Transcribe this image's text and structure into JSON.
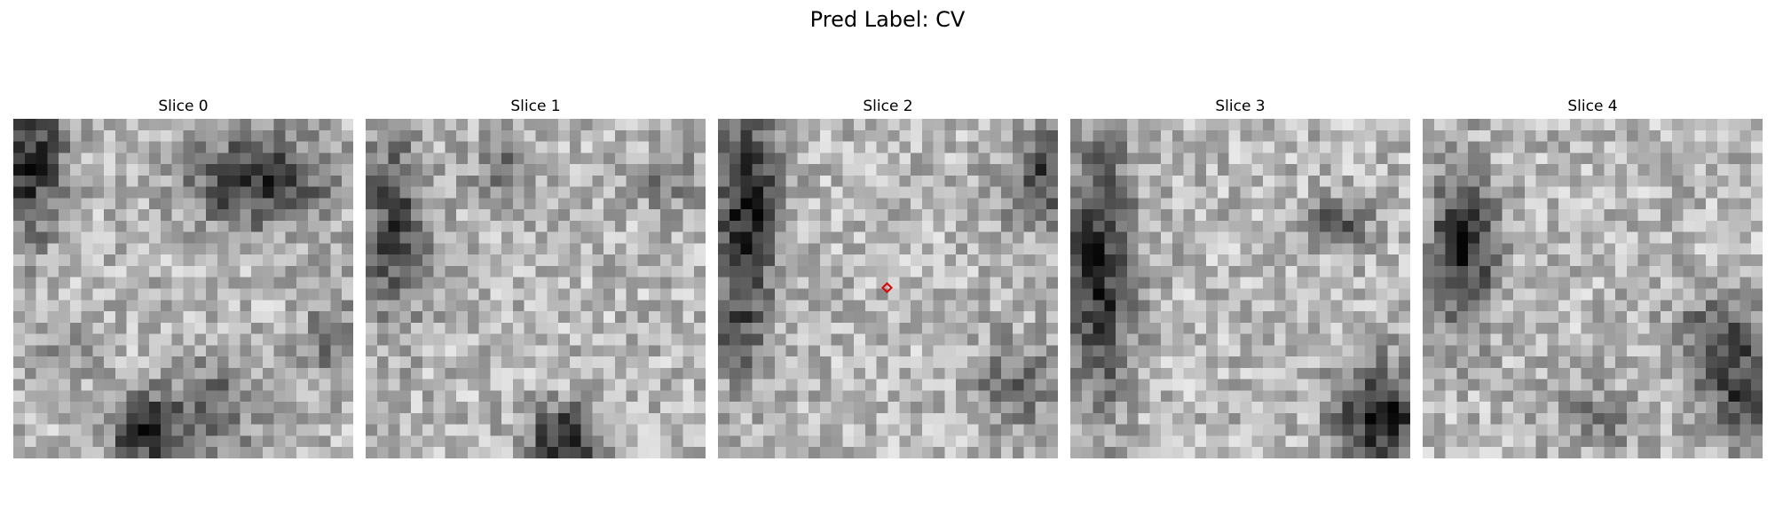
{
  "figure": {
    "title": "Pred Label: CV"
  },
  "panels": [
    {
      "title": "Slice 0"
    },
    {
      "title": "Slice 1"
    },
    {
      "title": "Slice 2",
      "has_marker": true
    },
    {
      "title": "Slice 3"
    },
    {
      "title": "Slice 4"
    }
  ],
  "colors": {
    "marker": "#e00000",
    "colormap": "gray"
  }
}
